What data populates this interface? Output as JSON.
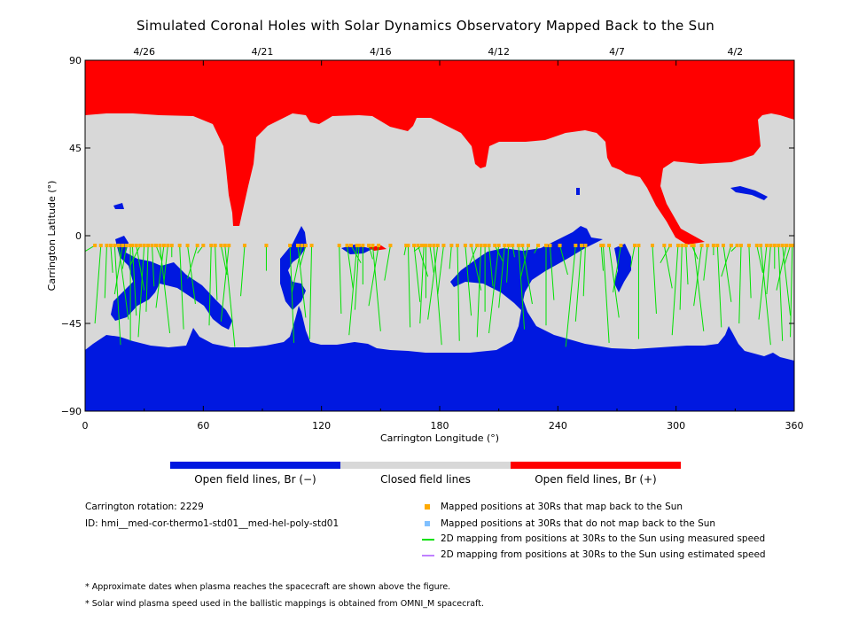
{
  "chart_data": {
    "type": "map",
    "title": "Simulated Coronal Holes with Solar Dynamics Observatory Mapped Back to the Sun",
    "xlabel": "Carrington Longitude (°)",
    "ylabel": "Carrington Latitude (°)",
    "xlim": [
      0,
      360
    ],
    "ylim": [
      -90,
      90
    ],
    "x_ticks": [
      "0",
      "60",
      "120",
      "180",
      "240",
      "300",
      "360"
    ],
    "y_ticks": [
      "90",
      "45",
      "0",
      "−45",
      "−90"
    ],
    "top_axis_dates": [
      {
        "label": "4/26",
        "lon": 30
      },
      {
        "label": "4/21",
        "lon": 90
      },
      {
        "label": "4/16",
        "lon": 150
      },
      {
        "label": "4/12",
        "lon": 210
      },
      {
        "label": "4/7",
        "lon": 270
      },
      {
        "label": "4/2",
        "lon": 330
      }
    ],
    "colorbar": [
      {
        "label": "Open field lines, Br (−)",
        "color": "#0018e0"
      },
      {
        "label": "Closed field lines",
        "color": "#d8d8d8"
      },
      {
        "label": "Open field lines, Br (+)",
        "color": "#ff0000"
      }
    ],
    "mapped_points_lat": -5,
    "mapped_points_lon": [
      5,
      8,
      11,
      13,
      15,
      17,
      19,
      21,
      23,
      24,
      26,
      28,
      30,
      32,
      34,
      36,
      38,
      40,
      42,
      44,
      48,
      52,
      57,
      60,
      64,
      66,
      69,
      71,
      73,
      81,
      92,
      104,
      108,
      110,
      112,
      115,
      129,
      133,
      135,
      138,
      139,
      141,
      144,
      146,
      149,
      155,
      163,
      164,
      167,
      169,
      171,
      172,
      173,
      175,
      177,
      179,
      182,
      186,
      189,
      193,
      196,
      199,
      201,
      203,
      205,
      208,
      210,
      213,
      215,
      217,
      220,
      222,
      225,
      230,
      234,
      236,
      241,
      249,
      252,
      254,
      262,
      263,
      266,
      272,
      279,
      281,
      288,
      294,
      297,
      301,
      303,
      305,
      308,
      309,
      313,
      316,
      319,
      321,
      324,
      328,
      331,
      333,
      337,
      341,
      343,
      346,
      348,
      350,
      352,
      354,
      356,
      358,
      359
    ]
  },
  "colors": {
    "open_negative": "#0018e0",
    "closed": "#d8d8d8",
    "open_positive": "#ff0000",
    "mapped_point": "#ffaa00",
    "unmapped_point": "#80c0ff",
    "measured_line": "#00e000",
    "estimated_line": "#c080ff"
  },
  "info": {
    "rotation": "Carrington rotation: 2229",
    "id": "ID: hmi__med-cor-thermo1-std01__med-hel-poly-std01"
  },
  "legend": [
    {
      "label": "Mapped positions at 30Rs that map back to the Sun",
      "symbol": "square-orange"
    },
    {
      "label": "Mapped positions at 30Rs that do not map back to the Sun",
      "symbol": "square-lightblue"
    },
    {
      "label": "2D mapping from positions at 30Rs to the Sun using measured speed",
      "symbol": "line-green"
    },
    {
      "label": "2D mapping from positions at 30Rs to the Sun using estimated speed",
      "symbol": "line-purple"
    }
  ],
  "notes": [
    "* Approximate dates when plasma reaches the spacecraft are shown above the figure.",
    "* Solar wind plasma speed used in the ballistic mappings is obtained from OMNI_M spacecraft."
  ]
}
